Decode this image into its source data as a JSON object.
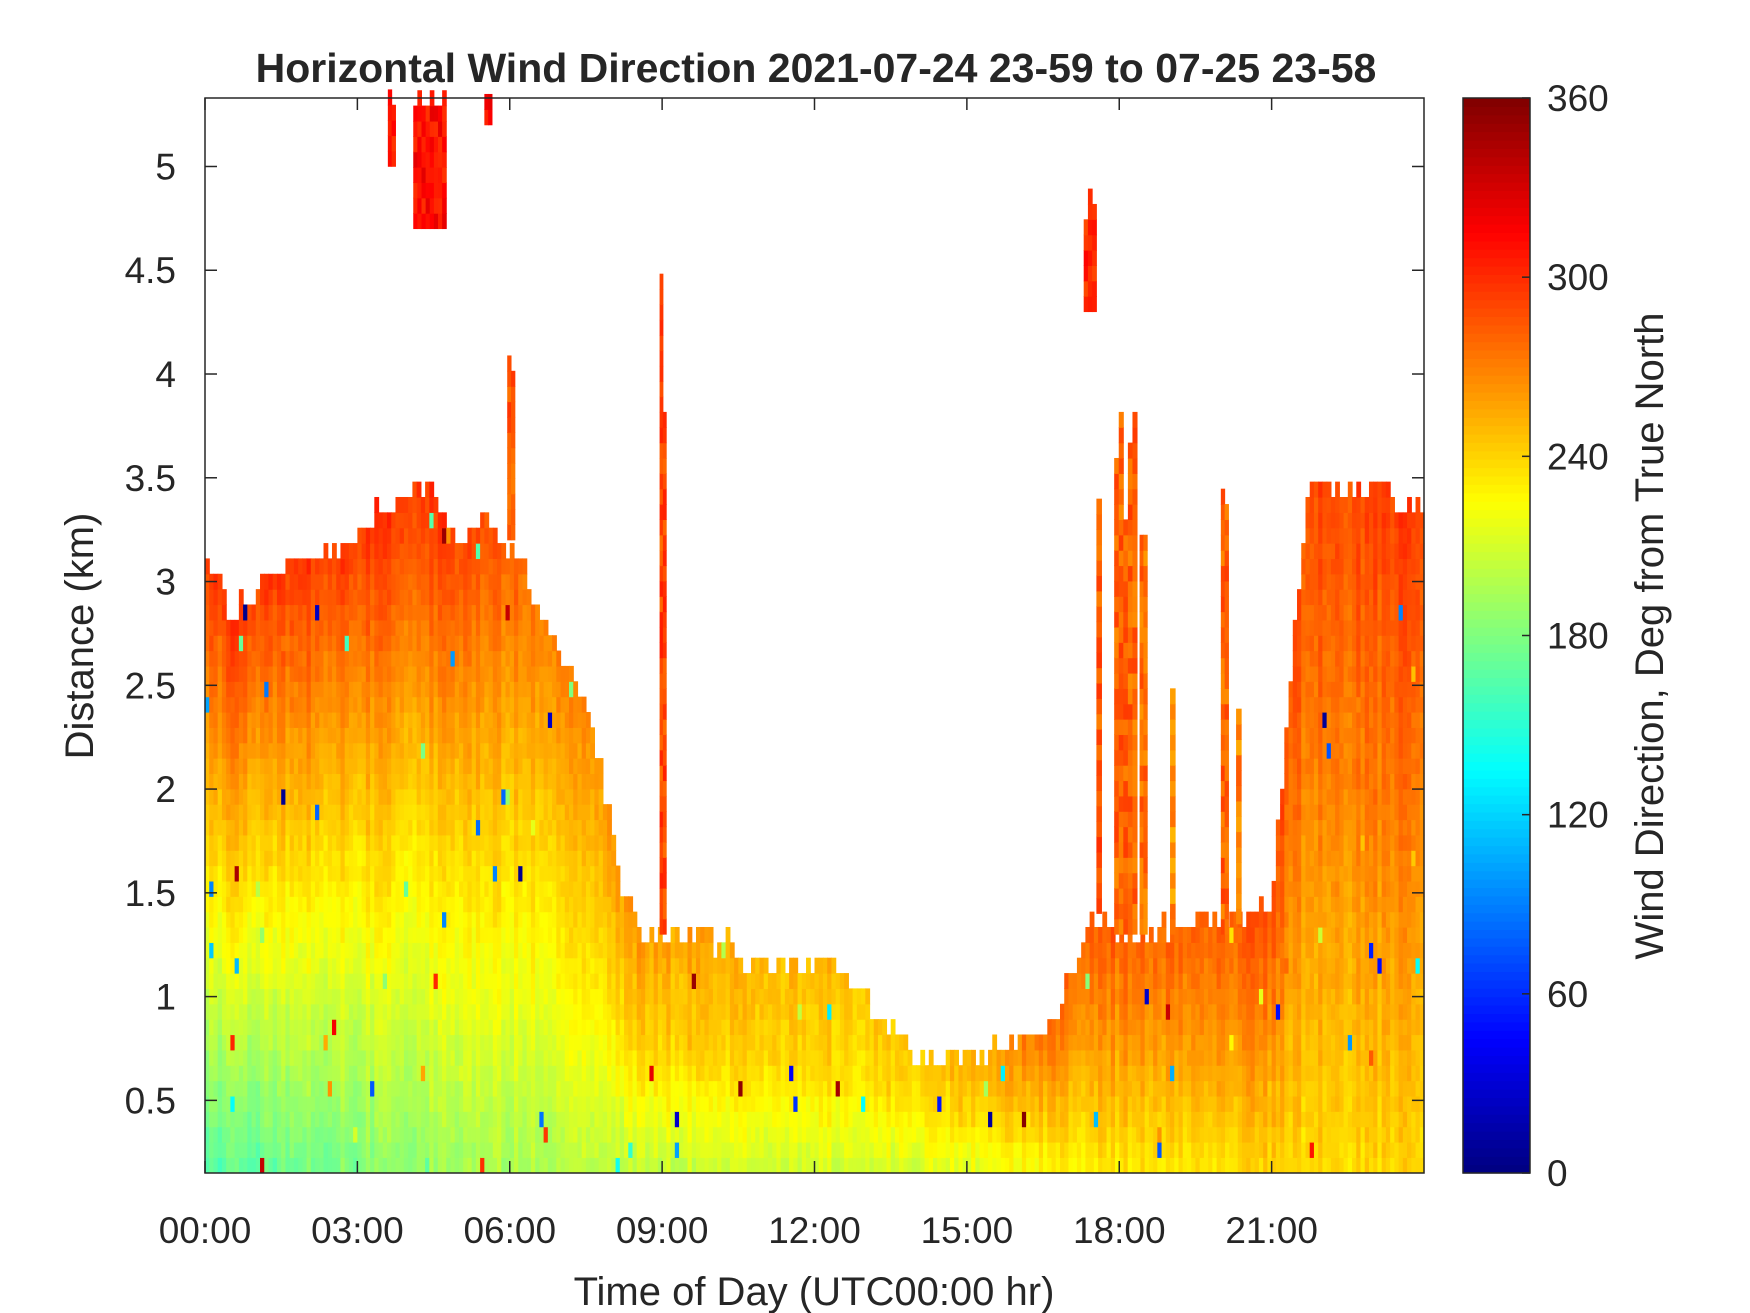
{
  "chart_data": {
    "type": "heatmap",
    "title": "Horizontal Wind Direction 2021-07-24 23-59 to 07-25 23-58",
    "xlabel": "Time of Day (UTC00:00 hr)",
    "ylabel": "Distance (km)",
    "colorbar_label": "Wind Direction, Deg from True North",
    "colormap": "jet",
    "x_range_hours": [
      0,
      24
    ],
    "xlim": [
      "00:00",
      "23:58"
    ],
    "ylim": [
      0.15,
      5.33
    ],
    "clim": [
      0,
      360
    ],
    "xticks": [
      {
        "hour": 0,
        "label": "00:00"
      },
      {
        "hour": 3,
        "label": "03:00"
      },
      {
        "hour": 6,
        "label": "06:00"
      },
      {
        "hour": 9,
        "label": "09:00"
      },
      {
        "hour": 12,
        "label": "12:00"
      },
      {
        "hour": 15,
        "label": "15:00"
      },
      {
        "hour": 18,
        "label": "18:00"
      },
      {
        "hour": 21,
        "label": "21:00"
      }
    ],
    "yticks": [
      {
        "value": 0.5,
        "label": "0.5"
      },
      {
        "value": 1,
        "label": "1"
      },
      {
        "value": 1.5,
        "label": "1.5"
      },
      {
        "value": 2,
        "label": "2"
      },
      {
        "value": 2.5,
        "label": "2.5"
      },
      {
        "value": 3,
        "label": "3"
      },
      {
        "value": 3.5,
        "label": "3.5"
      },
      {
        "value": 4,
        "label": "4"
      },
      {
        "value": 4.5,
        "label": "4.5"
      },
      {
        "value": 5,
        "label": "5"
      }
    ],
    "cticks": [
      {
        "value": 0,
        "label": "0"
      },
      {
        "value": 60,
        "label": "60"
      },
      {
        "value": 120,
        "label": "120"
      },
      {
        "value": 180,
        "label": "180"
      },
      {
        "value": 240,
        "label": "240"
      },
      {
        "value": 300,
        "label": "300"
      },
      {
        "value": 360,
        "label": "360"
      }
    ],
    "data_top_km_by_hour": [
      {
        "hour": 0,
        "top": 3.1
      },
      {
        "hour": 0.5,
        "top": 2.85
      },
      {
        "hour": 1.5,
        "top": 3.05
      },
      {
        "hour": 2.5,
        "top": 3.15
      },
      {
        "hour": 3.5,
        "top": 3.35
      },
      {
        "hour": 4.5,
        "top": 3.45
      },
      {
        "hour": 5,
        "top": 3.2
      },
      {
        "hour": 5.5,
        "top": 3.35
      },
      {
        "hour": 6.3,
        "top": 3.05
      },
      {
        "hour": 6.8,
        "top": 2.75
      },
      {
        "hour": 7.4,
        "top": 2.5
      },
      {
        "hour": 7.8,
        "top": 2.1
      },
      {
        "hour": 8.2,
        "top": 1.5
      },
      {
        "hour": 8.6,
        "top": 1.3
      },
      {
        "hour": 9.5,
        "top": 1.28
      },
      {
        "hour": 10.4,
        "top": 1.28
      },
      {
        "hour": 10.6,
        "top": 1.18
      },
      {
        "hour": 12.4,
        "top": 1.18
      },
      {
        "hour": 13.2,
        "top": 0.9
      },
      {
        "hour": 14,
        "top": 0.7
      },
      {
        "hour": 15.8,
        "top": 0.75
      },
      {
        "hour": 16.7,
        "top": 0.9
      },
      {
        "hour": 17.1,
        "top": 1.1
      },
      {
        "hour": 17.5,
        "top": 1.4
      },
      {
        "hour": 18,
        "top": 1.3
      },
      {
        "hour": 19.5,
        "top": 1.35
      },
      {
        "hour": 20.5,
        "top": 1.4
      },
      {
        "hour": 21,
        "top": 1.45
      },
      {
        "hour": 21.7,
        "top": 3.45
      },
      {
        "hour": 23.1,
        "top": 3.45
      },
      {
        "hour": 23.6,
        "top": 3.35
      },
      {
        "hour": 23.98,
        "top": 3.35
      }
    ],
    "direction_profile_deg_by_hour": [
      {
        "hour": 0,
        "bottom_deg": 165,
        "mid_deg": 235,
        "top_deg": 295
      },
      {
        "hour": 4.5,
        "bottom_deg": 190,
        "mid_deg": 240,
        "top_deg": 300
      },
      {
        "hour": 7.5,
        "bottom_deg": 200,
        "mid_deg": 235,
        "top_deg": 265
      },
      {
        "hour": 10,
        "bottom_deg": 210,
        "mid_deg": 245,
        "top_deg": 258
      },
      {
        "hour": 14,
        "bottom_deg": 212,
        "mid_deg": 235,
        "top_deg": 245
      },
      {
        "hour": 17,
        "bottom_deg": 230,
        "mid_deg": 258,
        "top_deg": 282
      },
      {
        "hour": 20,
        "bottom_deg": 238,
        "mid_deg": 265,
        "top_deg": 285
      },
      {
        "hour": 23.98,
        "bottom_deg": 240,
        "mid_deg": 270,
        "top_deg": 295
      }
    ],
    "isolated_plumes": [
      {
        "hour_start": 3.6,
        "hour_end": 3.75,
        "bottom_km": 5.0,
        "top_km": 5.33,
        "deg": 300
      },
      {
        "hour_start": 4.1,
        "hour_end": 4.75,
        "bottom_km": 4.7,
        "top_km": 5.33,
        "deg": 310
      },
      {
        "hour_start": 5.5,
        "hour_end": 5.65,
        "bottom_km": 5.2,
        "top_km": 5.33,
        "deg": 315
      },
      {
        "hour_start": 5.95,
        "hour_end": 6.1,
        "bottom_km": 3.2,
        "top_km": 4.05,
        "deg": 285
      },
      {
        "hour_start": 8.95,
        "hour_end": 9.08,
        "bottom_km": 1.3,
        "top_km": 4.55,
        "deg": 290
      },
      {
        "hour_start": 17.3,
        "hour_end": 17.55,
        "bottom_km": 4.3,
        "top_km": 4.85,
        "deg": 300
      },
      {
        "hour_start": 17.55,
        "hour_end": 17.65,
        "bottom_km": 1.4,
        "top_km": 3.5,
        "deg": 285
      },
      {
        "hour_start": 17.9,
        "hour_end": 18.35,
        "bottom_km": 1.3,
        "top_km": 3.85,
        "deg": 280
      },
      {
        "hour_start": 18.4,
        "hour_end": 18.55,
        "bottom_km": 1.3,
        "top_km": 3.5,
        "deg": 275
      },
      {
        "hour_start": 19.0,
        "hour_end": 19.1,
        "bottom_km": 1.3,
        "top_km": 2.7,
        "deg": 265
      },
      {
        "hour_start": 20.0,
        "hour_end": 20.15,
        "bottom_km": 1.3,
        "top_km": 3.5,
        "deg": 280
      },
      {
        "hour_start": 20.3,
        "hour_end": 20.4,
        "bottom_km": 1.35,
        "top_km": 2.6,
        "deg": 270
      }
    ]
  }
}
